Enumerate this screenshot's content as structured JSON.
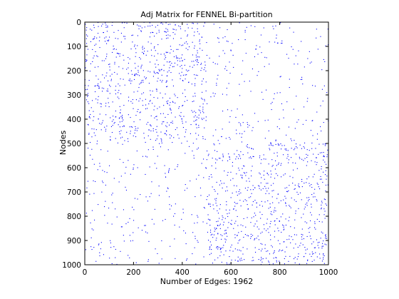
{
  "chart_data": {
    "type": "scatter",
    "title": "Adj Matrix for FENNEL Bi-partition",
    "xlabel": "Number of Edges: 1962",
    "ylabel": "Nodes",
    "xlim": [
      0,
      1000
    ],
    "ylim": [
      0,
      1000
    ],
    "y_axis_reversed": true,
    "x_ticks": [
      0,
      200,
      400,
      600,
      800,
      1000
    ],
    "y_ticks": [
      0,
      100,
      200,
      300,
      400,
      500,
      600,
      700,
      800,
      900,
      1000
    ],
    "x_tick_labels": [
      "0",
      "200",
      "400",
      "600",
      "800",
      "1000"
    ],
    "y_tick_labels": [
      "0",
      "100",
      "200",
      "300",
      "400",
      "500",
      "600",
      "700",
      "800",
      "900",
      "1000"
    ],
    "grid": false,
    "box": true,
    "marker": "point",
    "marker_color": "#0000ff",
    "nonzero_count": 1962,
    "blocks": [
      {
        "rows": [
          0,
          500
        ],
        "cols": [
          0,
          500
        ],
        "density": "high"
      },
      {
        "rows": [
          500,
          1000
        ],
        "cols": [
          500,
          1000
        ],
        "density": "high"
      },
      {
        "rows": [
          0,
          500
        ],
        "cols": [
          500,
          1000
        ],
        "density": "low"
      },
      {
        "rows": [
          500,
          1000
        ],
        "cols": [
          0,
          500
        ],
        "density": "low"
      }
    ]
  }
}
